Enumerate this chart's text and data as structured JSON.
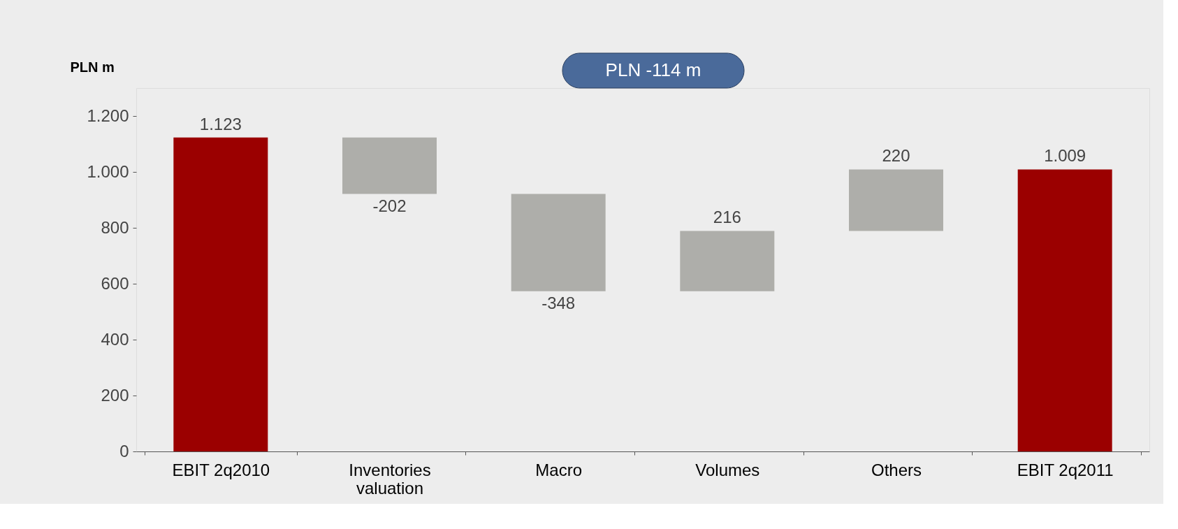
{
  "chart_data": {
    "type": "bar",
    "ylabel": "PLN m",
    "categories": [
      "EBIT 2q2010",
      "Inventories valuation",
      "Macro",
      "Volumes",
      "Others",
      "EBIT 2q2011"
    ],
    "values": [
      1123,
      -202,
      -348,
      216,
      220,
      1009
    ],
    "base": [
      0,
      1123,
      921,
      573,
      789,
      0
    ],
    "colors": [
      "#9b0000",
      "#aeaeaa",
      "#aeaeaa",
      "#aeaeaa",
      "#aeaeaa",
      "#9b0000"
    ],
    "value_labels": [
      "1.123",
      "-202",
      "-348",
      "216",
      "220",
      "1.009"
    ],
    "ylim": [
      0,
      1300
    ],
    "yticks": [
      0,
      200,
      400,
      600,
      800,
      {
        "value": 1000,
        "label": "1.000"
      },
      {
        "value": 1200,
        "label": "1.200"
      }
    ],
    "annotations": [
      "PLN -114 m"
    ],
    "grid": false
  }
}
